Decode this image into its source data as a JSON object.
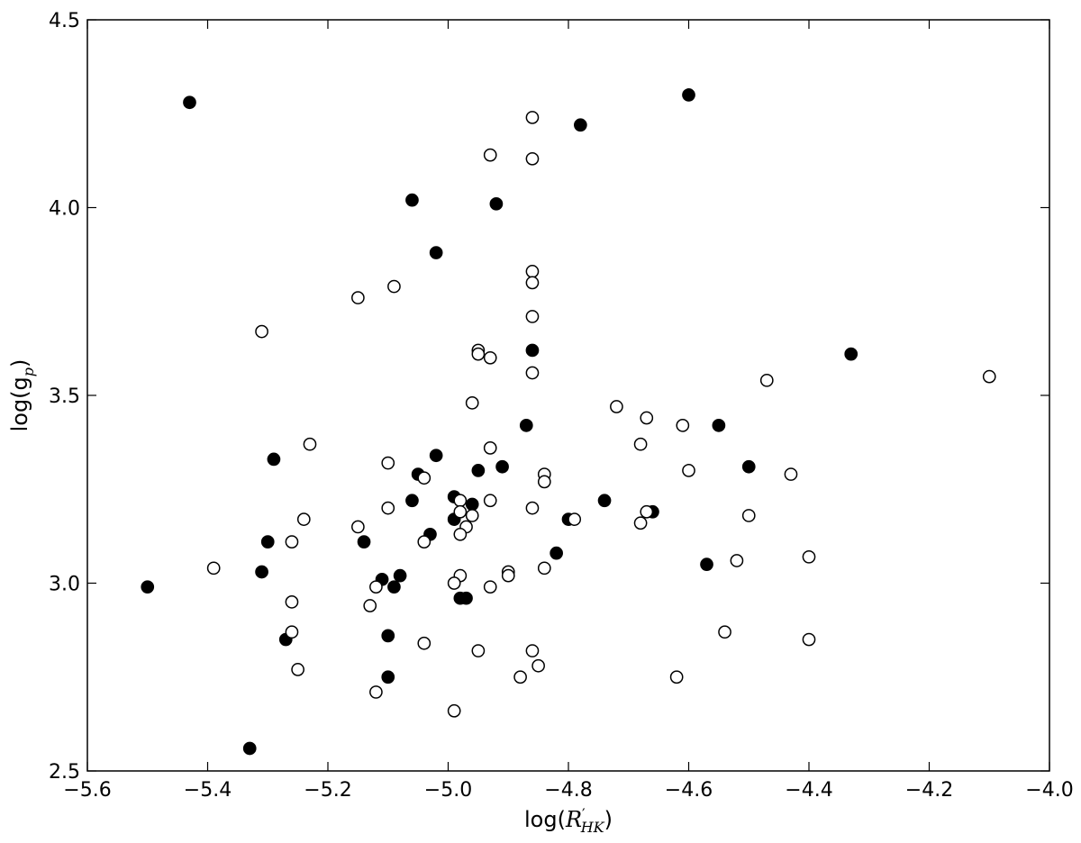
{
  "chart_data": {
    "type": "scatter",
    "title": "",
    "xlabel": "log(R'HK)",
    "ylabel": "log(gp)",
    "xlim": [
      -5.6,
      -4.0
    ],
    "ylim": [
      2.5,
      4.5
    ],
    "xticks": [
      "−5.6",
      "−5.4",
      "−5.2",
      "−5.0",
      "−4.8",
      "−4.6",
      "−4.4",
      "−4.2",
      "−4.0"
    ],
    "yticks": [
      "2.5",
      "3.0",
      "3.5",
      "4.0",
      "4.5"
    ],
    "grid": false,
    "legend": "none",
    "series": [
      {
        "marker": "filled-circle",
        "color": "#000000",
        "points": [
          [
            -5.43,
            4.28
          ],
          [
            -4.6,
            4.3
          ],
          [
            -4.78,
            4.22
          ],
          [
            -5.06,
            4.02
          ],
          [
            -4.92,
            4.01
          ],
          [
            -5.02,
            3.88
          ],
          [
            -4.86,
            3.62
          ],
          [
            -4.33,
            3.61
          ],
          [
            -4.87,
            3.42
          ],
          [
            -4.55,
            3.42
          ],
          [
            -5.29,
            3.33
          ],
          [
            -5.02,
            3.34
          ],
          [
            -4.5,
            3.31
          ],
          [
            -4.91,
            3.31
          ],
          [
            -5.05,
            3.29
          ],
          [
            -4.95,
            3.3
          ],
          [
            -5.06,
            3.22
          ],
          [
            -4.99,
            3.23
          ],
          [
            -4.96,
            3.21
          ],
          [
            -4.74,
            3.22
          ],
          [
            -4.66,
            3.19
          ],
          [
            -4.99,
            3.17
          ],
          [
            -4.8,
            3.17
          ],
          [
            -5.3,
            3.11
          ],
          [
            -5.14,
            3.11
          ],
          [
            -5.03,
            3.13
          ],
          [
            -4.82,
            3.08
          ],
          [
            -4.57,
            3.05
          ],
          [
            -5.31,
            3.03
          ],
          [
            -5.11,
            3.01
          ],
          [
            -5.08,
            3.02
          ],
          [
            -5.5,
            2.99
          ],
          [
            -5.09,
            2.99
          ],
          [
            -4.98,
            2.96
          ],
          [
            -4.97,
            2.96
          ],
          [
            -5.27,
            2.85
          ],
          [
            -5.1,
            2.86
          ],
          [
            -5.1,
            2.75
          ],
          [
            -5.33,
            2.56
          ]
        ]
      },
      {
        "marker": "open-circle",
        "color": "#000000",
        "points": [
          [
            -4.86,
            4.24
          ],
          [
            -4.93,
            4.14
          ],
          [
            -4.86,
            4.13
          ],
          [
            -4.86,
            3.83
          ],
          [
            -4.86,
            3.8
          ],
          [
            -5.09,
            3.79
          ],
          [
            -5.15,
            3.76
          ],
          [
            -5.31,
            3.67
          ],
          [
            -4.86,
            3.71
          ],
          [
            -4.95,
            3.62
          ],
          [
            -4.95,
            3.61
          ],
          [
            -4.93,
            3.6
          ],
          [
            -4.86,
            3.56
          ],
          [
            -4.47,
            3.54
          ],
          [
            -4.1,
            3.55
          ],
          [
            -4.96,
            3.48
          ],
          [
            -4.72,
            3.47
          ],
          [
            -4.67,
            3.44
          ],
          [
            -4.61,
            3.42
          ],
          [
            -4.68,
            3.37
          ],
          [
            -5.23,
            3.37
          ],
          [
            -4.93,
            3.36
          ],
          [
            -5.1,
            3.32
          ],
          [
            -4.6,
            3.3
          ],
          [
            -4.84,
            3.29
          ],
          [
            -4.43,
            3.29
          ],
          [
            -5.04,
            3.28
          ],
          [
            -4.84,
            3.27
          ],
          [
            -4.98,
            3.22
          ],
          [
            -4.93,
            3.22
          ],
          [
            -4.86,
            3.2
          ],
          [
            -5.1,
            3.2
          ],
          [
            -4.98,
            3.19
          ],
          [
            -4.67,
            3.19
          ],
          [
            -4.96,
            3.18
          ],
          [
            -4.5,
            3.18
          ],
          [
            -4.79,
            3.17
          ],
          [
            -5.24,
            3.17
          ],
          [
            -4.68,
            3.16
          ],
          [
            -4.97,
            3.15
          ],
          [
            -5.15,
            3.15
          ],
          [
            -4.98,
            3.13
          ],
          [
            -5.04,
            3.11
          ],
          [
            -5.26,
            3.11
          ],
          [
            -4.4,
            3.07
          ],
          [
            -4.52,
            3.06
          ],
          [
            -4.84,
            3.04
          ],
          [
            -5.39,
            3.04
          ],
          [
            -4.9,
            3.03
          ],
          [
            -4.9,
            3.02
          ],
          [
            -4.98,
            3.02
          ],
          [
            -4.99,
            3.0
          ],
          [
            -5.12,
            2.99
          ],
          [
            -4.93,
            2.99
          ],
          [
            -5.26,
            2.95
          ],
          [
            -5.13,
            2.94
          ],
          [
            -5.26,
            2.87
          ],
          [
            -4.54,
            2.87
          ],
          [
            -5.04,
            2.84
          ],
          [
            -4.4,
            2.85
          ],
          [
            -4.86,
            2.82
          ],
          [
            -4.95,
            2.82
          ],
          [
            -4.85,
            2.78
          ],
          [
            -5.25,
            2.77
          ],
          [
            -4.88,
            2.75
          ],
          [
            -4.62,
            2.75
          ],
          [
            -5.12,
            2.71
          ],
          [
            -4.99,
            2.66
          ]
        ]
      }
    ]
  }
}
